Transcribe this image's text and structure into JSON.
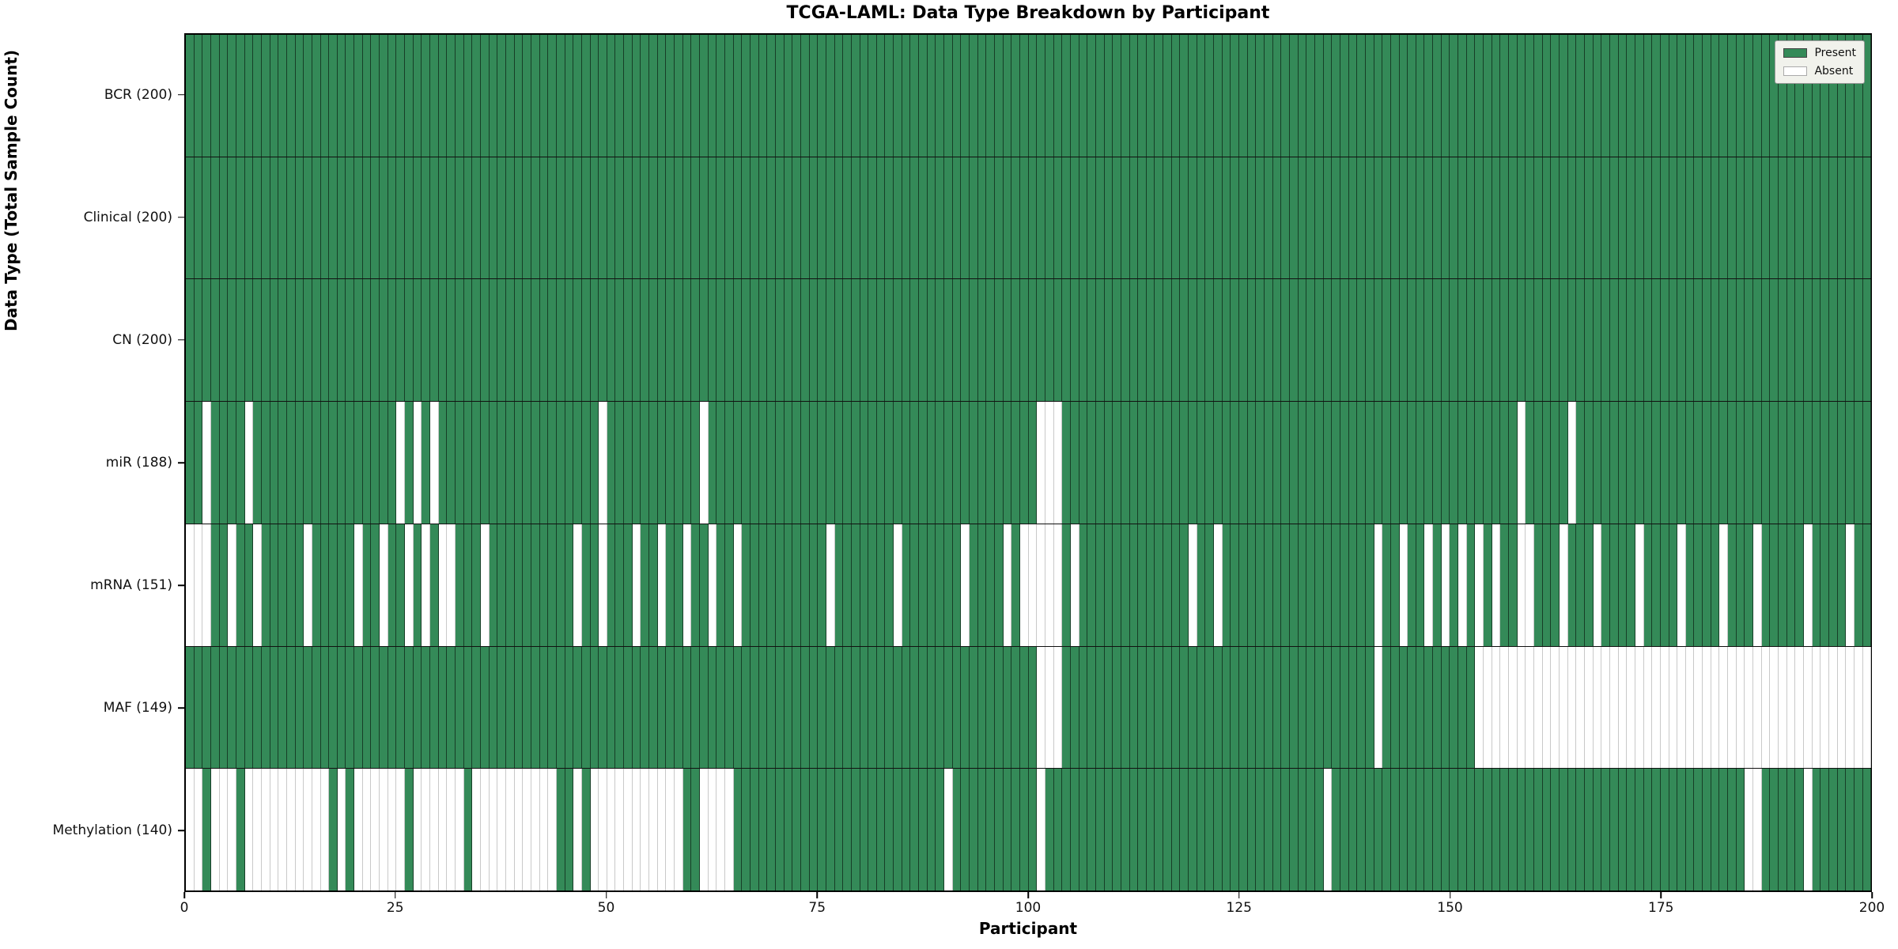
{
  "title": "TCGA-LAML: Data Type Breakdown by Participant",
  "xlabel": "Participant",
  "ylabel": "Data Type (Total Sample Count)",
  "legend": {
    "present_label": "Present",
    "absent_label": "Absent",
    "position": "upper right"
  },
  "colors": {
    "present": "#348a58",
    "absent": "#ffffff",
    "present_border": "rgba(0,0,0,0.55)",
    "absent_border": "#c9c9c9"
  },
  "x_ticks": [
    "0",
    "25",
    "50",
    "75",
    "100",
    "125",
    "150",
    "175",
    "200"
  ],
  "chart_data": {
    "type": "heatmap",
    "title": "TCGA-LAML: Data Type Breakdown by Participant",
    "xlabel": "Participant",
    "ylabel": "Data Type (Total Sample Count)",
    "x_range": [
      0,
      200
    ],
    "n_participants": 200,
    "grid": false,
    "legend_position": "upper right",
    "legend_entries": [
      "Present",
      "Absent"
    ],
    "rows": [
      {
        "label": "BCR (200)",
        "data_type": "BCR",
        "present_count": 200,
        "absent_columns": []
      },
      {
        "label": "Clinical (200)",
        "data_type": "Clinical",
        "present_count": 200,
        "absent_columns": []
      },
      {
        "label": "CN (200)",
        "data_type": "CN",
        "present_count": 200,
        "absent_columns": []
      },
      {
        "label": "miR (188)",
        "data_type": "miR",
        "present_count": 188,
        "absent_columns": [
          2,
          7,
          25,
          27,
          29,
          49,
          61,
          101,
          102,
          103,
          158,
          164
        ]
      },
      {
        "label": "mRNA (151)",
        "data_type": "mRNA",
        "present_count": 151,
        "absent_columns": [
          0,
          1,
          2,
          5,
          8,
          14,
          20,
          23,
          26,
          28,
          30,
          31,
          35,
          46,
          49,
          53,
          56,
          59,
          62,
          65,
          76,
          84,
          92,
          97,
          99,
          100,
          101,
          102,
          103,
          105,
          119,
          122,
          141,
          144,
          147,
          149,
          151,
          153,
          155,
          158,
          159,
          163,
          167,
          172,
          177,
          182,
          186,
          192,
          197
        ]
      },
      {
        "label": "MAF (149)",
        "data_type": "MAF",
        "present_count": 149,
        "absent_columns": [
          101,
          102,
          103,
          141,
          153,
          154,
          155,
          156,
          157,
          158,
          159,
          160,
          161,
          162,
          163,
          164,
          165,
          166,
          167,
          168,
          169,
          170,
          171,
          172,
          173,
          174,
          175,
          176,
          177,
          178,
          179,
          180,
          181,
          182,
          183,
          184,
          185,
          186,
          187,
          188,
          189,
          190,
          191,
          192,
          193,
          194,
          195,
          196,
          197,
          198,
          199
        ]
      },
      {
        "label": "Methylation (140)",
        "data_type": "Methylation",
        "present_count": 140,
        "absent_columns": [
          0,
          1,
          3,
          4,
          5,
          7,
          8,
          9,
          10,
          11,
          12,
          13,
          14,
          15,
          16,
          18,
          20,
          21,
          22,
          23,
          24,
          25,
          27,
          28,
          29,
          30,
          31,
          32,
          34,
          35,
          36,
          37,
          38,
          39,
          40,
          41,
          42,
          43,
          46,
          48,
          49,
          50,
          51,
          52,
          53,
          54,
          55,
          56,
          57,
          58,
          61,
          62,
          63,
          64,
          90,
          101,
          135,
          185,
          186,
          192
        ]
      }
    ]
  }
}
